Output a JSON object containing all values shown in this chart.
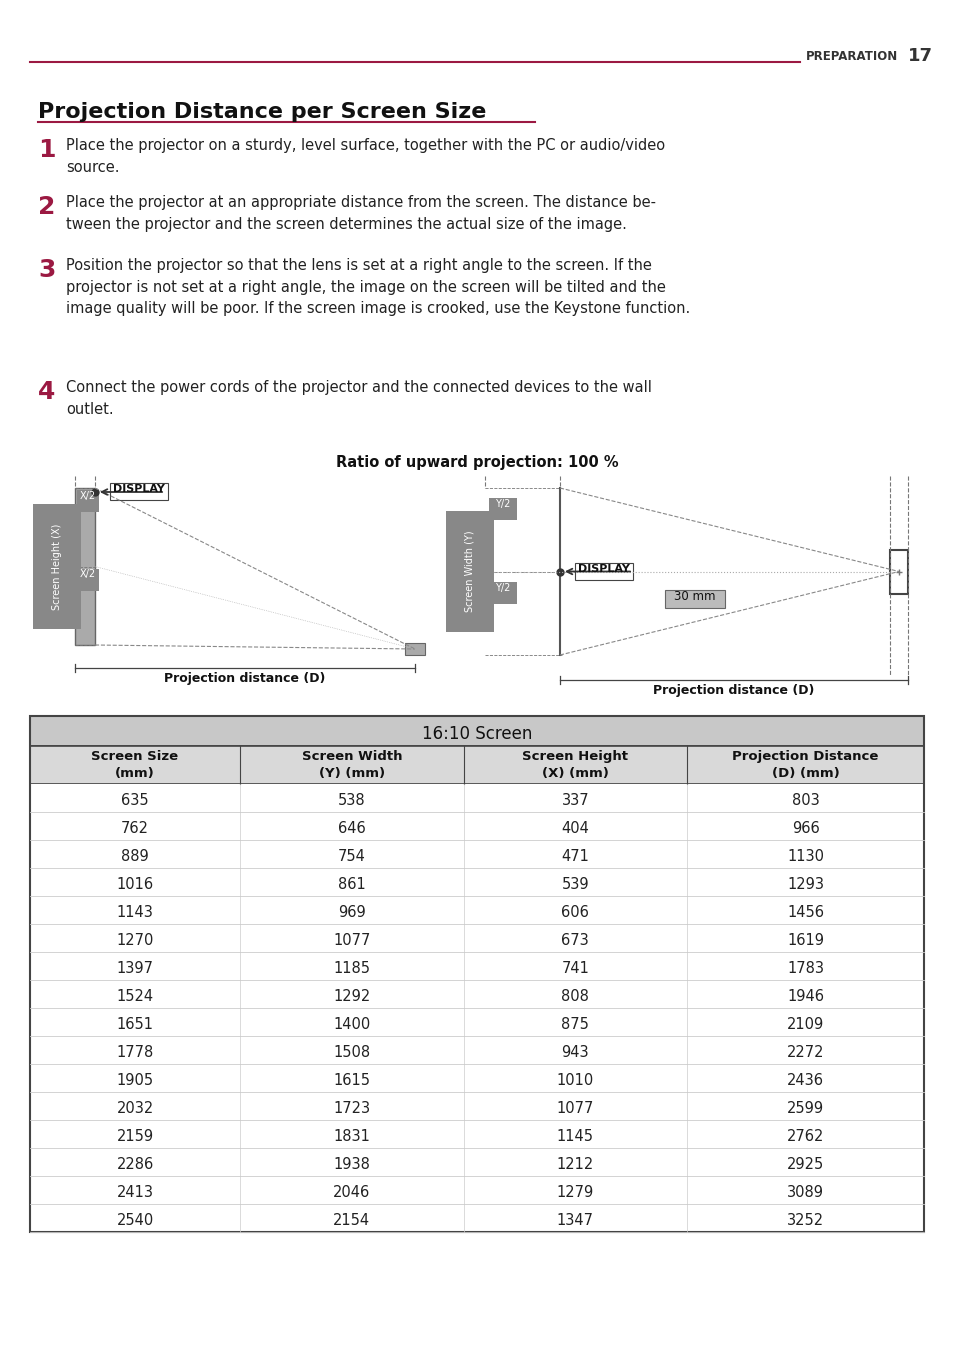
{
  "page_header_text": "PREPARATION",
  "page_number": "17",
  "title": "Projection Distance per Screen Size",
  "steps": [
    {
      "num": "1",
      "text": "Place the projector on a sturdy, level surface, together with the PC or audio/video\nsource."
    },
    {
      "num": "2",
      "text": "Place the projector at an appropriate distance from the screen. The distance be-\ntween the projector and the screen determines the actual size of the image."
    },
    {
      "num": "3",
      "text": "Position the projector so that the lens is set at a right angle to the screen. If the\nprojector is not set at a right angle, the image on the screen will be tilted and the\nimage quality will be poor. If the screen image is crooked, use the Keystone function."
    },
    {
      "num": "4",
      "text": "Connect the power cords of the projector and the connected devices to the wall\noutlet."
    }
  ],
  "diagram_title": "Ratio of upward projection: 100 %",
  "table_title": "16:10 Screen",
  "col_headers": [
    "Screen Size\n(mm)",
    "Screen Width\n(Y) (mm)",
    "Screen Height\n(X) (mm)",
    "Projection Distance\n(D) (mm)"
  ],
  "table_data": [
    [
      635,
      538,
      337,
      803
    ],
    [
      762,
      646,
      404,
      966
    ],
    [
      889,
      754,
      471,
      1130
    ],
    [
      1016,
      861,
      539,
      1293
    ],
    [
      1143,
      969,
      606,
      1456
    ],
    [
      1270,
      1077,
      673,
      1619
    ],
    [
      1397,
      1185,
      741,
      1783
    ],
    [
      1524,
      1292,
      808,
      1946
    ],
    [
      1651,
      1400,
      875,
      2109
    ],
    [
      1778,
      1508,
      943,
      2272
    ],
    [
      1905,
      1615,
      1010,
      2436
    ],
    [
      2032,
      1723,
      1077,
      2599
    ],
    [
      2159,
      1831,
      1145,
      2762
    ],
    [
      2286,
      1938,
      1212,
      2925
    ],
    [
      2413,
      2046,
      1279,
      3089
    ],
    [
      2540,
      2154,
      1347,
      3252
    ]
  ],
  "header_line_color": "#9b1942",
  "title_underline_color": "#9b1942",
  "step_num_color": "#9b1942",
  "step_num_fontsize": 18,
  "body_fontsize": 10.5,
  "table_header_bg": "#d9d9d9",
  "table_title_bg": "#c8c8c8",
  "table_border_color": "#444444",
  "diagram_label_bg": "#888888",
  "bg_color": "#ffffff"
}
